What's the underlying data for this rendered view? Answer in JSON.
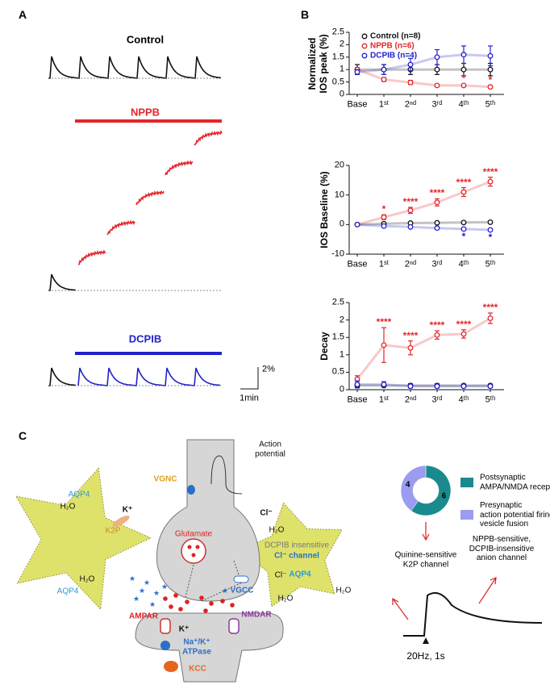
{
  "panels": {
    "a": "A",
    "b": "B",
    "c": "C"
  },
  "panel_a": {
    "control": "Control",
    "nppb": "NPPB",
    "dcpib": "DCPIB",
    "scale_y": "2%",
    "scale_x": "1min"
  },
  "chart_data": [
    {
      "type": "line",
      "ylabel": "Normalized\nIOS peak (%)",
      "categories": [
        "Base",
        "1ˢᵗ",
        "2ⁿᵈ",
        "3ʳᵈ",
        "4ᵗʰ",
        "5ᵗʰ"
      ],
      "ylim": [
        0,
        2.5
      ],
      "yticks": [
        0,
        0.5,
        1,
        1.5,
        2,
        2.5
      ],
      "legend": "top-left",
      "series": [
        {
          "name": "Control (n=8)",
          "color": "#111111",
          "values": [
            1,
            1,
            1,
            1,
            1,
            1
          ],
          "errors": [
            0.2,
            0.2,
            0.2,
            0.2,
            0.25,
            0.25
          ]
        },
        {
          "name": "NPPB (n=6)",
          "color": "#e3262b",
          "values": [
            1,
            0.6,
            0.48,
            0.36,
            0.36,
            0.3
          ],
          "errors": [
            0.08,
            0.08,
            0.08,
            0.05,
            0.05,
            0.05
          ],
          "significance": [
            null,
            null,
            null,
            null,
            "*",
            "*"
          ]
        },
        {
          "name": "DCPIB (n=4)",
          "color": "#2222cc",
          "values": [
            0.9,
            1.0,
            1.2,
            1.5,
            1.6,
            1.55
          ],
          "errors": [
            0.1,
            0.2,
            0.25,
            0.3,
            0.35,
            0.4
          ]
        }
      ]
    },
    {
      "type": "line",
      "ylabel": "IOS Baseline (%)",
      "categories": [
        "Base",
        "1ˢᵗ",
        "2ⁿᵈ",
        "3ʳᵈ",
        "4ᵗʰ",
        "5ᵗʰ"
      ],
      "ylim": [
        -10,
        20
      ],
      "yticks": [
        -10,
        0,
        10,
        20
      ],
      "series": [
        {
          "color": "#111111",
          "values": [
            0,
            0.3,
            0.5,
            0.6,
            0.7,
            0.8
          ],
          "errors": [
            0.2,
            0.3,
            0.3,
            0.3,
            0.4,
            0.4
          ]
        },
        {
          "color": "#e3262b",
          "values": [
            0,
            2.5,
            4.8,
            7.5,
            11,
            14.5
          ],
          "errors": [
            0.3,
            0.8,
            1,
            1.2,
            1.5,
            1.5
          ],
          "significance": [
            null,
            "*",
            "****",
            "****",
            "****",
            "****"
          ]
        },
        {
          "color": "#2222cc",
          "values": [
            0,
            -0.5,
            -0.8,
            -1.2,
            -1.5,
            -1.8
          ],
          "errors": [
            0.2,
            0.3,
            0.3,
            0.3,
            0.4,
            0.4
          ],
          "significance": [
            null,
            null,
            null,
            null,
            "*",
            "*"
          ]
        }
      ]
    },
    {
      "type": "line",
      "ylabel": "Decay",
      "categories": [
        "Base",
        "1ˢᵗ",
        "2ⁿᵈ",
        "3ʳᵈ",
        "4ᵗʰ",
        "5ᵗʰ"
      ],
      "ylim": [
        0,
        2.5
      ],
      "yticks": [
        0,
        0.5,
        1,
        1.5,
        2,
        2.5
      ],
      "series": [
        {
          "color": "#111111",
          "values": [
            0.12,
            0.12,
            0.12,
            0.12,
            0.12,
            0.12
          ],
          "errors": [
            0.05,
            0.05,
            0.05,
            0.05,
            0.04,
            0.04
          ]
        },
        {
          "color": "#e3262b",
          "values": [
            0.3,
            1.28,
            1.2,
            1.57,
            1.6,
            2.05
          ],
          "errors": [
            0.1,
            0.5,
            0.2,
            0.12,
            0.12,
            0.15
          ],
          "significance": [
            null,
            "****",
            "****",
            "****",
            "****",
            "****"
          ]
        },
        {
          "color": "#2222cc",
          "values": [
            0.15,
            0.15,
            0.1,
            0.1,
            0.1,
            0.1
          ],
          "errors": [
            0.1,
            0.08,
            0.05,
            0.05,
            0.04,
            0.04
          ]
        }
      ]
    },
    {
      "type": "donut",
      "categories": [
        "Postsynaptic\nAMPA/NMDA receptor",
        "Presynaptic\naction potential firing\nvesicle fusion"
      ],
      "values": [
        6,
        4
      ],
      "colors": [
        "#1b8a8c",
        "#9b9bef"
      ]
    }
  ],
  "diagram": {
    "labels": [
      "VGNC",
      "Action\npotential",
      "Glutamate",
      "VGCC",
      "AQP4",
      "H₂O",
      "K⁺",
      "K2P",
      "H₂O",
      "AQP4",
      "K⁺",
      "AMPAR",
      "NMDAR",
      "Na⁺/K⁺\nATPase",
      "KCC",
      "H₂O",
      "DCPIB insensitive",
      "Cl⁻ channel",
      "Cl⁻",
      "Cl⁻",
      "AQP4",
      "H₂O",
      "H₂O"
    ],
    "quinine": "Quinine-sensitive\nK2P channel",
    "anion": "NPPB-sensitive,\nDCPIB-insensitive\nanion channel",
    "stimulus": "20Hz, 1s"
  }
}
